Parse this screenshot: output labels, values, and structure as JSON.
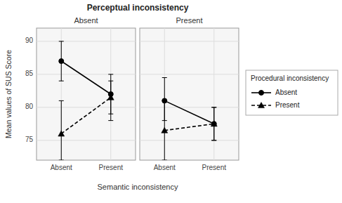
{
  "chart_data": {
    "type": "line",
    "title": "Perceptual inconsistency",
    "panels": [
      "Absent",
      "Present"
    ],
    "xlabel": "Semantic inconsistency",
    "ylabel": "Mean values of SUS Score",
    "categories": [
      "Absent",
      "Present"
    ],
    "legend_title": "Procedural inconsistency",
    "legend": "right",
    "grid": true,
    "ylim": [
      72,
      92
    ],
    "yticks": [
      75,
      80,
      85,
      90
    ],
    "series": [
      {
        "name": "Absent",
        "color": "#000000",
        "marker": "circle",
        "line_style": "solid",
        "values": [
          [
            87.0,
            82.0
          ],
          [
            81.0,
            77.5
          ]
        ],
        "error_low": [
          [
            3.0,
            3.0
          ],
          [
            3.0,
            2.5
          ]
        ],
        "error_high": [
          [
            3.0,
            3.0
          ],
          [
            3.5,
            2.5
          ]
        ]
      },
      {
        "name": "Present",
        "color": "#000000",
        "marker": "triangle",
        "line_style": "dashed",
        "values": [
          [
            76.0,
            81.5
          ],
          [
            76.5,
            77.5
          ]
        ],
        "error_low": [
          [
            4.0,
            3.5
          ],
          [
            4.5,
            2.5
          ]
        ],
        "error_high": [
          [
            5.0,
            2.5
          ],
          [
            4.5,
            2.5
          ]
        ]
      }
    ]
  }
}
